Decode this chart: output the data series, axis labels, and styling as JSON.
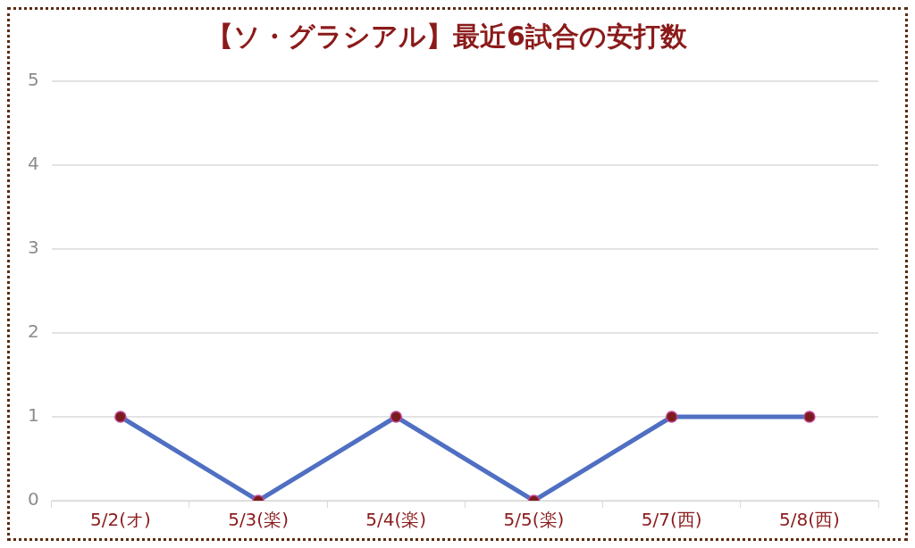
{
  "chart_data": {
    "type": "line",
    "title": "【ソ・グラシアル】最近6試合の安打数",
    "categories": [
      "5/2(オ)",
      "5/3(楽)",
      "5/4(楽)",
      "5/5(楽)",
      "5/7(西)",
      "5/8(西)"
    ],
    "series": [
      {
        "color": "#4f6fc2",
        "values": [
          1,
          0,
          1,
          0,
          1,
          1
        ]
      }
    ],
    "ylim": [
      0,
      5
    ],
    "yticks": [
      0,
      1,
      2,
      3,
      4,
      5
    ],
    "grid": "y",
    "legend": false,
    "marker": "circle",
    "line_style": "solid"
  }
}
